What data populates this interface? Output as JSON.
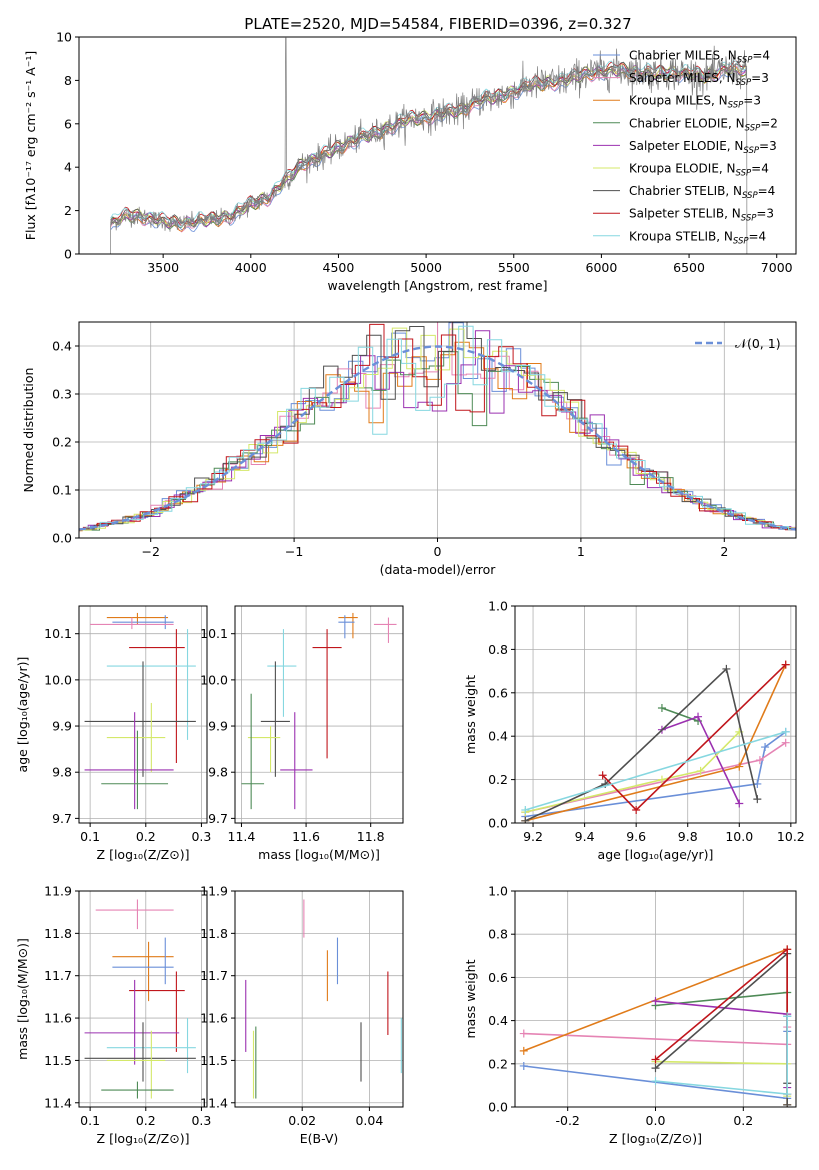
{
  "figure_title": "PLATE=2520, MJD=54584, FIBERID=0396, z=0.327",
  "colors": {
    "Chabrier MILES": "#6a8fd8",
    "Salpeter MILES": "#e584b4",
    "Kroupa MILES": "#e07b1a",
    "Chabrier ELODIE": "#4e8a56",
    "Salpeter ELODIE": "#9b30b0",
    "Kroupa ELODIE": "#d4e86a",
    "Chabrier STELIB": "#4f4f4f",
    "Salpeter STELIB": "#c0161c",
    "Kroupa STELIB": "#86d7e0"
  },
  "chart_data": [
    {
      "id": "spectrum",
      "type": "line",
      "title": "PLATE=2520, MJD=54584, FIBERID=0396, z=0.327",
      "xlabel": "wavelength [Angstrom, rest frame]",
      "ylabel": "Flux [fλ10⁻¹⁷ erg cm⁻² s⁻¹ A⁻¹]",
      "xlim": [
        3020,
        7110
      ],
      "ylim": [
        0,
        10
      ],
      "xticks": [
        3500,
        4000,
        4500,
        5000,
        5500,
        6000,
        6500,
        7000
      ],
      "yticks": [
        0,
        2,
        4,
        6,
        8,
        10
      ],
      "legend_position": "top-right",
      "legend": [
        {
          "label": "Chabrier MILES, N",
          "sub": "SSP",
          "eq": "=4",
          "color": "#6a8fd8"
        },
        {
          "label": "Salpeter MILES, N",
          "sub": "SSP",
          "eq": "=3",
          "color": "#e584b4"
        },
        {
          "label": "Kroupa MILES, N",
          "sub": "SSP",
          "eq": "=3",
          "color": "#e07b1a"
        },
        {
          "label": "Chabrier ELODIE, N",
          "sub": "SSP",
          "eq": "=2",
          "color": "#4e8a56"
        },
        {
          "label": "Salpeter ELODIE, N",
          "sub": "SSP",
          "eq": "=3",
          "color": "#9b30b0"
        },
        {
          "label": "Kroupa ELODIE, N",
          "sub": "SSP",
          "eq": "=4",
          "color": "#d4e86a"
        },
        {
          "label": "Chabrier STELIB, N",
          "sub": "SSP",
          "eq": "=4",
          "color": "#4f4f4f"
        },
        {
          "label": "Salpeter STELIB, N",
          "sub": "SSP",
          "eq": "=3",
          "color": "#c0161c"
        },
        {
          "label": "Kroupa STELIB, N",
          "sub": "SSP",
          "eq": "=4",
          "color": "#86d7e0"
        }
      ],
      "spectrum_continuum": [
        [
          3200,
          1.4
        ],
        [
          3300,
          1.8
        ],
        [
          3400,
          1.7
        ],
        [
          3500,
          1.5
        ],
        [
          3600,
          1.4
        ],
        [
          3700,
          1.5
        ],
        [
          3800,
          1.6
        ],
        [
          3900,
          1.8
        ],
        [
          4000,
          2.3
        ],
        [
          4100,
          2.6
        ],
        [
          4200,
          3.4
        ],
        [
          4300,
          4.2
        ],
        [
          4400,
          4.5
        ],
        [
          4500,
          4.9
        ],
        [
          4600,
          5.3
        ],
        [
          4700,
          5.5
        ],
        [
          4800,
          5.9
        ],
        [
          4900,
          6.2
        ],
        [
          5000,
          6.3
        ],
        [
          5100,
          6.5
        ],
        [
          5200,
          6.6
        ],
        [
          5300,
          7.1
        ],
        [
          5400,
          7.2
        ],
        [
          5500,
          7.5
        ],
        [
          5600,
          7.8
        ],
        [
          5700,
          7.9
        ],
        [
          5800,
          8.0
        ],
        [
          5900,
          8.3
        ],
        [
          6000,
          8.4
        ],
        [
          6100,
          8.5
        ],
        [
          6200,
          8.4
        ],
        [
          6300,
          8.3
        ],
        [
          6400,
          8.4
        ],
        [
          6500,
          8.3
        ],
        [
          6600,
          8.2
        ],
        [
          6700,
          8.5
        ],
        [
          6800,
          8.5
        ],
        [
          6830,
          8.4
        ]
      ],
      "spectrum_range": [
        3200,
        6830
      ],
      "spike_x": 4200,
      "spike_y": 9.95
    },
    {
      "id": "residuals",
      "type": "histogram",
      "xlabel": "(data-model)/error",
      "ylabel": "Normed distribution",
      "xlim": [
        -2.5,
        2.5
      ],
      "ylim": [
        0,
        0.45
      ],
      "xticks": [
        -2,
        -1,
        0,
        1,
        2
      ],
      "yticks": [
        0.0,
        0.1,
        0.2,
        0.3,
        0.4
      ],
      "legend_position": "top-right",
      "legend": [
        {
          "label": "𝒩(0, 1)",
          "style": "dashed",
          "color": "#6a8fd8"
        }
      ],
      "bin_width": 0.1
    },
    {
      "id": "age_vs_Z",
      "type": "errorbar",
      "xlabel": "Z [log₁₀(Z/Z⊙)]",
      "ylabel": "age  [log₁₀(age/yr)]",
      "xlim": [
        0.08,
        0.31
      ],
      "ylim": [
        9.69,
        10.16
      ],
      "xticks": [
        0.1,
        0.2,
        0.3
      ],
      "yticks": [
        9.7,
        9.8,
        9.9,
        10.0,
        10.1
      ],
      "points": [
        {
          "model": "Kroupa MILES",
          "x": 0.185,
          "y": 10.135,
          "xlo": 0.13,
          "xhi": 0.24,
          "ylo": 10.12,
          "yhi": 10.145
        },
        {
          "model": "Chabrier MILES",
          "x": 0.235,
          "y": 10.125,
          "xlo": 0.14,
          "xhi": 0.25,
          "ylo": 10.11,
          "yhi": 10.14
        },
        {
          "model": "Salpeter MILES",
          "x": 0.175,
          "y": 10.12,
          "xlo": 0.1,
          "xhi": 0.25,
          "ylo": 10.11,
          "yhi": 10.135
        },
        {
          "model": "Salpeter STELIB",
          "x": 0.255,
          "y": 10.07,
          "xlo": 0.17,
          "xhi": 0.27,
          "ylo": 9.82,
          "yhi": 10.11
        },
        {
          "model": "Kroupa STELIB",
          "x": 0.275,
          "y": 10.03,
          "xlo": 0.13,
          "xhi": 0.29,
          "ylo": 9.87,
          "yhi": 10.11
        },
        {
          "model": "Chabrier STELIB",
          "x": 0.195,
          "y": 9.91,
          "xlo": 0.09,
          "xhi": 0.29,
          "ylo": 9.79,
          "yhi": 10.04
        },
        {
          "model": "Kroupa ELODIE",
          "x": 0.21,
          "y": 9.875,
          "xlo": 0.13,
          "xhi": 0.235,
          "ylo": 9.8,
          "yhi": 9.95
        },
        {
          "model": "Salpeter ELODIE",
          "x": 0.18,
          "y": 9.805,
          "xlo": 0.09,
          "xhi": 0.25,
          "ylo": 9.72,
          "yhi": 9.93
        },
        {
          "model": "Chabrier ELODIE",
          "x": 0.185,
          "y": 9.775,
          "xlo": 0.12,
          "xhi": 0.24,
          "ylo": 9.72,
          "yhi": 9.89
        }
      ]
    },
    {
      "id": "age_vs_mass",
      "type": "errorbar",
      "xlabel": "mass [log₁₀(M/M⊙)]",
      "ylabel": "",
      "xlim": [
        11.38,
        11.9
      ],
      "ylim": [
        9.69,
        10.16
      ],
      "xticks": [
        11.4,
        11.6,
        11.8
      ],
      "yticks": [
        9.7,
        9.8,
        9.9,
        10.0,
        10.1
      ],
      "points": [
        {
          "model": "Kroupa MILES",
          "x": 11.745,
          "y": 10.135,
          "xlo": 11.7,
          "xhi": 11.76,
          "ylo": 10.09,
          "yhi": 10.145
        },
        {
          "model": "Chabrier MILES",
          "x": 11.72,
          "y": 10.125,
          "xlo": 11.7,
          "xhi": 11.75,
          "ylo": 10.09,
          "yhi": 10.14
        },
        {
          "model": "Salpeter MILES",
          "x": 11.855,
          "y": 10.12,
          "xlo": 11.81,
          "xhi": 11.88,
          "ylo": 10.08,
          "yhi": 10.135
        },
        {
          "model": "Salpeter STELIB",
          "x": 11.665,
          "y": 10.07,
          "xlo": 11.62,
          "xhi": 11.71,
          "ylo": 9.83,
          "yhi": 10.11
        },
        {
          "model": "Kroupa STELIB",
          "x": 11.53,
          "y": 10.03,
          "xlo": 11.48,
          "xhi": 11.57,
          "ylo": 9.92,
          "yhi": 10.11
        },
        {
          "model": "Chabrier STELIB",
          "x": 11.505,
          "y": 9.91,
          "xlo": 11.46,
          "xhi": 11.55,
          "ylo": 9.79,
          "yhi": 10.04
        },
        {
          "model": "Kroupa ELODIE",
          "x": 11.49,
          "y": 9.875,
          "xlo": 11.42,
          "xhi": 11.52,
          "ylo": 9.8,
          "yhi": 9.9
        },
        {
          "model": "Salpeter ELODIE",
          "x": 11.565,
          "y": 9.805,
          "xlo": 11.52,
          "xhi": 11.62,
          "ylo": 9.72,
          "yhi": 9.93
        },
        {
          "model": "Chabrier ELODIE",
          "x": 11.43,
          "y": 9.775,
          "xlo": 11.4,
          "xhi": 11.47,
          "ylo": 9.72,
          "yhi": 9.97
        }
      ]
    },
    {
      "id": "weight_vs_age",
      "type": "line",
      "xlabel": "age  [log₁₀(age/yr)]",
      "ylabel": "mass weight",
      "xlim": [
        9.13,
        10.22
      ],
      "ylim": [
        0,
        1
      ],
      "xticks": [
        9.2,
        9.4,
        9.6,
        9.8,
        10.0,
        10.2
      ],
      "yticks": [
        0.0,
        0.2,
        0.4,
        0.6,
        0.8,
        1.0
      ],
      "series": [
        {
          "model": "Chabrier MILES",
          "points": [
            [
              9.17,
              0.03
            ],
            [
              10.07,
              0.18
            ],
            [
              10.1,
              0.35
            ],
            [
              10.18,
              0.42
            ]
          ]
        },
        {
          "model": "Salpeter MILES",
          "points": [
            [
              9.17,
              0.05
            ],
            [
              10.08,
              0.29
            ],
            [
              10.18,
              0.37
            ]
          ]
        },
        {
          "model": "Kroupa MILES",
          "points": [
            [
              9.17,
              0.01
            ],
            [
              10.0,
              0.26
            ],
            [
              10.18,
              0.73
            ]
          ]
        },
        {
          "model": "Chabrier ELODIE",
          "points": [
            [
              9.7,
              0.53
            ],
            [
              9.84,
              0.47
            ]
          ]
        },
        {
          "model": "Salpeter ELODIE",
          "points": [
            [
              9.7,
              0.43
            ],
            [
              9.84,
              0.49
            ],
            [
              10.0,
              0.09
            ]
          ]
        },
        {
          "model": "Kroupa ELODIE",
          "points": [
            [
              9.17,
              0.05
            ],
            [
              9.7,
              0.2
            ],
            [
              9.85,
              0.24
            ],
            [
              10.0,
              0.42
            ]
          ]
        },
        {
          "model": "Chabrier STELIB",
          "points": [
            [
              9.17,
              0.01
            ],
            [
              9.48,
              0.18
            ],
            [
              9.95,
              0.71
            ],
            [
              10.07,
              0.11
            ]
          ]
        },
        {
          "model": "Salpeter STELIB",
          "points": [
            [
              9.47,
              0.22
            ],
            [
              9.6,
              0.06
            ],
            [
              10.18,
              0.73
            ]
          ]
        },
        {
          "model": "Kroupa STELIB",
          "points": [
            [
              9.17,
              0.06
            ],
            [
              10.18,
              0.42
            ]
          ]
        }
      ]
    },
    {
      "id": "mass_vs_Z",
      "type": "errorbar",
      "xlabel": "Z [log₁₀(Z/Z⊙)]",
      "ylabel": "mass [log₁₀(M/M⊙)]",
      "xlim": [
        0.08,
        0.31
      ],
      "ylim": [
        11.39,
        11.9
      ],
      "xticks": [
        0.1,
        0.2,
        0.3
      ],
      "yticks": [
        11.4,
        11.5,
        11.6,
        11.7,
        11.8,
        11.9
      ],
      "points": [
        {
          "model": "Salpeter MILES",
          "x": 0.185,
          "y": 11.855,
          "xlo": 0.11,
          "xhi": 0.25,
          "ylo": 11.81,
          "yhi": 11.88
        },
        {
          "model": "Kroupa MILES",
          "x": 0.205,
          "y": 11.745,
          "xlo": 0.14,
          "xhi": 0.25,
          "ylo": 11.64,
          "yhi": 11.78
        },
        {
          "model": "Chabrier MILES",
          "x": 0.235,
          "y": 11.72,
          "xlo": 0.14,
          "xhi": 0.25,
          "ylo": 11.68,
          "yhi": 11.79
        },
        {
          "model": "Salpeter STELIB",
          "x": 0.255,
          "y": 11.665,
          "xlo": 0.17,
          "xhi": 0.27,
          "ylo": 11.52,
          "yhi": 11.71
        },
        {
          "model": "Salpeter ELODIE",
          "x": 0.18,
          "y": 11.565,
          "xlo": 0.09,
          "xhi": 0.26,
          "ylo": 11.49,
          "yhi": 11.69
        },
        {
          "model": "Kroupa STELIB",
          "x": 0.275,
          "y": 11.53,
          "xlo": 0.13,
          "xhi": 0.29,
          "ylo": 11.47,
          "yhi": 11.6
        },
        {
          "model": "Chabrier STELIB",
          "x": 0.195,
          "y": 11.505,
          "xlo": 0.09,
          "xhi": 0.29,
          "ylo": 11.45,
          "yhi": 11.59
        },
        {
          "model": "Kroupa ELODIE",
          "x": 0.21,
          "y": 11.5,
          "xlo": 0.13,
          "xhi": 0.235,
          "ylo": 11.41,
          "yhi": 11.57
        },
        {
          "model": "Chabrier ELODIE",
          "x": 0.185,
          "y": 11.43,
          "xlo": 0.12,
          "xhi": 0.25,
          "ylo": 11.41,
          "yhi": 11.45
        }
      ]
    },
    {
      "id": "mass_vs_EBV",
      "type": "errorbar",
      "xlabel": "E(B-V)",
      "ylabel": "",
      "xlim": [
        0.0,
        0.05
      ],
      "ylim": [
        11.39,
        11.9
      ],
      "xticks": [
        0.02,
        0.04
      ],
      "yticks": [
        11.4,
        11.5,
        11.6,
        11.7,
        11.8,
        11.9
      ],
      "points": [
        {
          "model": "Salpeter MILES",
          "x": 0.0205,
          "ylo": 11.79,
          "yhi": 11.88
        },
        {
          "model": "Kroupa MILES",
          "x": 0.0275,
          "ylo": 11.64,
          "yhi": 11.76
        },
        {
          "model": "Chabrier MILES",
          "x": 0.0305,
          "ylo": 11.68,
          "yhi": 11.79
        },
        {
          "model": "Salpeter STELIB",
          "x": 0.0455,
          "ylo": 11.56,
          "yhi": 11.71
        },
        {
          "model": "Salpeter ELODIE",
          "x": 0.0032,
          "ylo": 11.52,
          "yhi": 11.69
        },
        {
          "model": "Kroupa STELIB",
          "x": 0.0495,
          "ylo": 11.47,
          "yhi": 11.6
        },
        {
          "model": "Chabrier STELIB",
          "x": 0.0375,
          "ylo": 11.45,
          "yhi": 11.59
        },
        {
          "model": "Kroupa ELODIE",
          "x": 0.0055,
          "ylo": 11.41,
          "yhi": 11.57
        },
        {
          "model": "Chabrier ELODIE",
          "x": 0.0062,
          "ylo": 11.41,
          "yhi": 11.58
        }
      ]
    },
    {
      "id": "weight_vs_Z",
      "type": "line",
      "xlabel": "Z [log₁₀(Z/Z⊙)]",
      "ylabel": "mass weight",
      "xlim": [
        -0.32,
        0.32
      ],
      "ylim": [
        0,
        1
      ],
      "xticks": [
        -0.2,
        0.0,
        0.2
      ],
      "yticks": [
        0.0,
        0.2,
        0.4,
        0.6,
        0.8,
        1.0
      ],
      "series": [
        {
          "model": "Chabrier MILES",
          "points": [
            [
              -0.3,
              0.19
            ],
            [
              0.3,
              0.04
            ],
            [
              0.3,
              0.35
            ],
            [
              0.3,
              0.42
            ]
          ]
        },
        {
          "model": "Salpeter MILES",
          "points": [
            [
              -0.3,
              0.34
            ],
            [
              0.3,
              0.29
            ],
            [
              0.3,
              0.37
            ]
          ]
        },
        {
          "model": "Kroupa MILES",
          "points": [
            [
              -0.3,
              0.26
            ],
            [
              0.3,
              0.73
            ],
            [
              0.3,
              0.01
            ]
          ]
        },
        {
          "model": "Chabrier ELODIE",
          "points": [
            [
              0.0,
              0.47
            ],
            [
              0.3,
              0.53
            ]
          ]
        },
        {
          "model": "Salpeter ELODIE",
          "points": [
            [
              0.0,
              0.49
            ],
            [
              0.3,
              0.43
            ],
            [
              0.3,
              0.09
            ]
          ]
        },
        {
          "model": "Kroupa ELODIE",
          "points": [
            [
              0.0,
              0.21
            ],
            [
              0.3,
              0.2
            ],
            [
              0.3,
              0.05
            ]
          ]
        },
        {
          "model": "Chabrier STELIB",
          "points": [
            [
              0.0,
              0.18
            ],
            [
              0.3,
              0.71
            ],
            [
              0.3,
              0.11
            ],
            [
              0.3,
              0.01
            ]
          ]
        },
        {
          "model": "Salpeter STELIB",
          "points": [
            [
              0.0,
              0.22
            ],
            [
              0.3,
              0.73
            ],
            [
              0.3,
              0.06
            ]
          ]
        },
        {
          "model": "Kroupa STELIB",
          "points": [
            [
              0.0,
              0.12
            ],
            [
              0.3,
              0.06
            ],
            [
              0.3,
              0.42
            ]
          ]
        }
      ]
    }
  ]
}
